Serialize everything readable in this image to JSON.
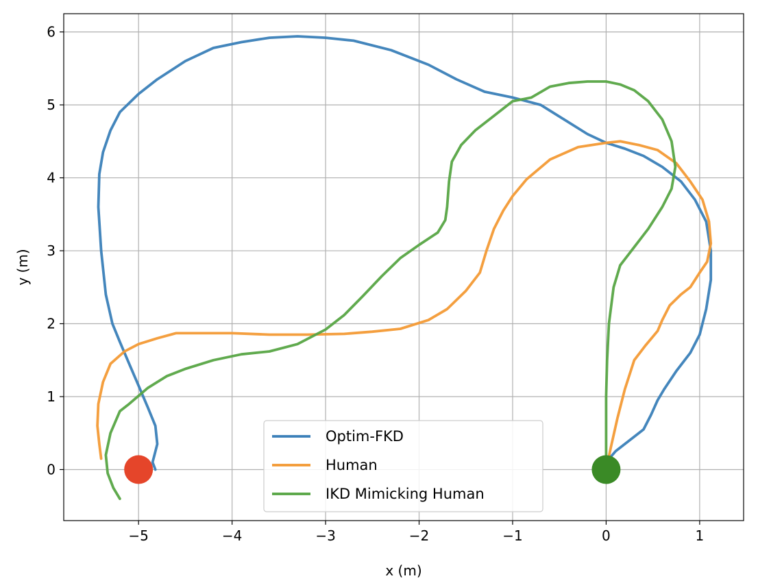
{
  "chart_data": {
    "type": "line",
    "title": "",
    "xlabel": "x (m)",
    "ylabel": "y (m)",
    "xlim": [
      -5.8,
      1.47
    ],
    "ylim": [
      -0.7,
      6.25
    ],
    "xticks": [
      -5,
      -4,
      -3,
      -2,
      -1,
      0,
      1
    ],
    "yticks": [
      0,
      1,
      2,
      3,
      4,
      5,
      6
    ],
    "xtick_labels": [
      "−5",
      "−4",
      "−3",
      "−2",
      "−1",
      "0",
      "1"
    ],
    "ytick_labels": [
      "0",
      "1",
      "2",
      "3",
      "4",
      "5",
      "6"
    ],
    "grid": true,
    "legend_position": "lower center",
    "series": [
      {
        "name": "Optim-FKD",
        "color": "#3a7fb8",
        "x": [
          0.0,
          0.1,
          0.25,
          0.4,
          0.48,
          0.55,
          0.62,
          0.75,
          0.9,
          1.0,
          1.07,
          1.12,
          1.12,
          1.07,
          0.95,
          0.8,
          0.6,
          0.4,
          0.2,
          0.0,
          -0.2,
          -0.45,
          -0.7,
          -1.0,
          -1.3,
          -1.6,
          -1.9,
          -2.3,
          -2.7,
          -3.0,
          -3.3,
          -3.6,
          -3.9,
          -4.2,
          -4.5,
          -4.8,
          -5.0,
          -5.2,
          -5.3,
          -5.38,
          -5.42,
          -5.43,
          -5.4,
          -5.35,
          -5.28,
          -5.2,
          -5.1,
          -5.0,
          -4.9,
          -4.82,
          -4.8,
          -4.83,
          -4.85,
          -4.82
        ],
        "y": [
          0.1,
          0.25,
          0.4,
          0.55,
          0.75,
          0.95,
          1.1,
          1.35,
          1.6,
          1.85,
          2.2,
          2.6,
          3.0,
          3.4,
          3.7,
          3.95,
          4.15,
          4.3,
          4.4,
          4.48,
          4.6,
          4.8,
          5.0,
          5.1,
          5.18,
          5.35,
          5.55,
          5.75,
          5.88,
          5.92,
          5.94,
          5.92,
          5.86,
          5.78,
          5.6,
          5.35,
          5.15,
          4.9,
          4.65,
          4.35,
          4.05,
          3.6,
          3.0,
          2.4,
          2.0,
          1.75,
          1.45,
          1.15,
          0.85,
          0.6,
          0.35,
          0.2,
          0.1,
          0.0
        ]
      },
      {
        "name": "Human",
        "color": "#f39a35",
        "x": [
          0.0,
          0.05,
          0.12,
          0.2,
          0.3,
          0.42,
          0.55,
          0.6,
          0.68,
          0.8,
          0.9,
          1.0,
          1.08,
          1.12,
          1.1,
          1.03,
          0.9,
          0.75,
          0.55,
          0.35,
          0.15,
          0.0,
          -0.3,
          -0.6,
          -0.85,
          -1.0,
          -1.1,
          -1.2,
          -1.28,
          -1.35,
          -1.5,
          -1.7,
          -1.9,
          -2.2,
          -2.5,
          -2.8,
          -3.2,
          -3.6,
          -4.0,
          -4.4,
          -4.6,
          -4.8,
          -5.0,
          -5.15,
          -5.3,
          -5.38,
          -5.43,
          -5.44,
          -5.42,
          -5.4
        ],
        "y": [
          0.0,
          0.3,
          0.7,
          1.1,
          1.5,
          1.7,
          1.9,
          2.05,
          2.25,
          2.4,
          2.5,
          2.7,
          2.85,
          3.1,
          3.4,
          3.7,
          3.95,
          4.2,
          4.38,
          4.45,
          4.5,
          4.48,
          4.42,
          4.25,
          3.98,
          3.75,
          3.55,
          3.3,
          3.0,
          2.7,
          2.45,
          2.2,
          2.05,
          1.93,
          1.89,
          1.86,
          1.85,
          1.85,
          1.87,
          1.87,
          1.87,
          1.8,
          1.72,
          1.62,
          1.45,
          1.2,
          0.9,
          0.6,
          0.35,
          0.15
        ]
      },
      {
        "name": "IKD Mimicking Human",
        "color": "#57a544",
        "x": [
          0.0,
          0.0,
          0.0,
          0.01,
          0.03,
          0.08,
          0.15,
          0.3,
          0.45,
          0.6,
          0.7,
          0.74,
          0.7,
          0.6,
          0.45,
          0.3,
          0.15,
          0.0,
          -0.2,
          -0.4,
          -0.6,
          -0.8,
          -1.0,
          -1.2,
          -1.4,
          -1.55,
          -1.65,
          -1.68,
          -1.7,
          -1.72,
          -1.8,
          -2.0,
          -2.2,
          -2.4,
          -2.6,
          -2.8,
          -3.0,
          -3.3,
          -3.6,
          -3.9,
          -4.2,
          -4.5,
          -4.7,
          -4.9,
          -5.1,
          -5.2,
          -5.3,
          -5.35,
          -5.33,
          -5.27,
          -5.2
        ],
        "y": [
          0.0,
          0.5,
          1.0,
          1.5,
          2.0,
          2.5,
          2.8,
          3.05,
          3.3,
          3.6,
          3.85,
          4.15,
          4.5,
          4.8,
          5.05,
          5.2,
          5.28,
          5.32,
          5.32,
          5.3,
          5.25,
          5.1,
          5.05,
          4.85,
          4.65,
          4.45,
          4.22,
          3.95,
          3.6,
          3.42,
          3.25,
          3.08,
          2.9,
          2.65,
          2.38,
          2.12,
          1.92,
          1.72,
          1.62,
          1.58,
          1.5,
          1.38,
          1.28,
          1.12,
          0.9,
          0.8,
          0.5,
          0.2,
          -0.05,
          -0.25,
          -0.4
        ]
      }
    ],
    "markers": [
      {
        "name": "start-marker",
        "x": -5.0,
        "y": 0.0,
        "color": "#e5452a"
      },
      {
        "name": "goal-marker",
        "x": 0.0,
        "y": 0.0,
        "color": "#3a8a26"
      }
    ]
  }
}
